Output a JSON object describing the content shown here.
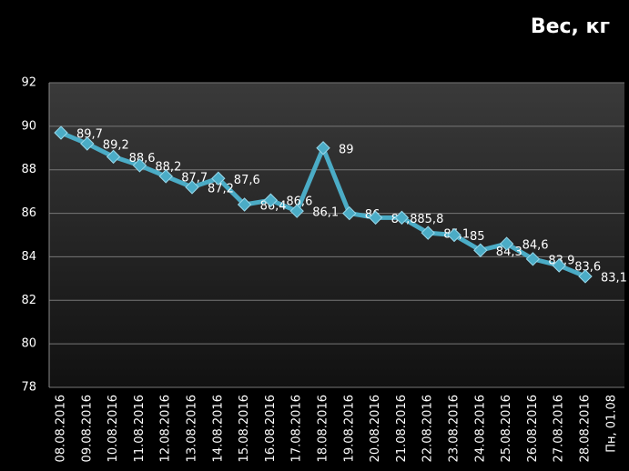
{
  "chart_data": {
    "type": "line",
    "title": "Вес, кг",
    "categories": [
      "08.08.2016",
      "09.08.2016",
      "10.08.2016",
      "11.08.2016",
      "12.08.2016",
      "13.08.2016",
      "14.08.2016",
      "15.08.2016",
      "16.08.2016",
      "17.08.2016",
      "18.08.2016",
      "19.08.2016",
      "20.08.2016",
      "21.08.2016",
      "22.08.2016",
      "23.08.2016",
      "24.08.2016",
      "25.08.2016",
      "26.08.2016",
      "27.08.2016",
      "28.08.2016",
      "Пн, 01.08"
    ],
    "series": [
      {
        "name": "Вес",
        "color": "#4bacc6",
        "values": [
          89.7,
          89.2,
          88.6,
          88.2,
          87.7,
          87.2,
          87.6,
          86.4,
          86.6,
          86.1,
          89,
          86,
          85.8,
          85.8,
          85.1,
          85,
          84.3,
          84.6,
          83.9,
          83.6,
          83.1,
          null
        ],
        "value_labels": [
          "89,7",
          "89,2",
          "88,6",
          "88,2",
          "87,7",
          "87,2",
          "87,6",
          "86,4",
          "86,6",
          "86,1",
          "89",
          "86",
          "85,8",
          "85,8",
          "85,1",
          "85",
          "84,3",
          "84,6",
          "83,9",
          "83,6",
          "83,1",
          null
        ]
      }
    ],
    "ylim": [
      78,
      92
    ],
    "yticks": [
      78,
      80,
      82,
      84,
      86,
      88,
      90,
      92
    ],
    "grid": true
  }
}
